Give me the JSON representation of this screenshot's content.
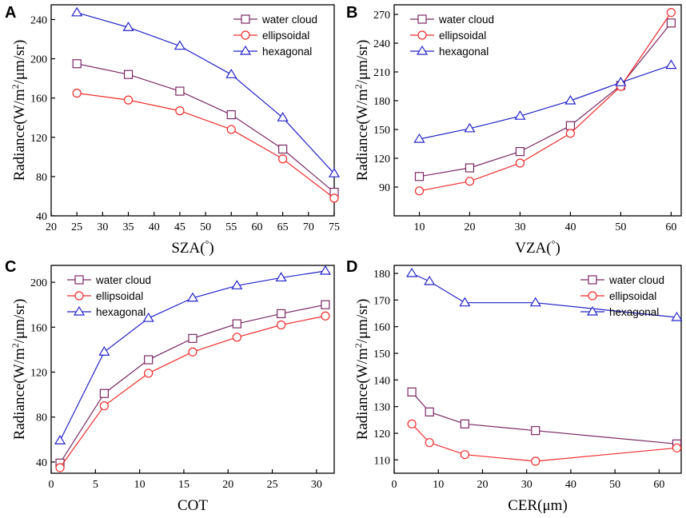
{
  "colors": {
    "water": "#7a2a63",
    "ellipsoidal": "#ef2b2b",
    "hexagonal": "#2323c8"
  },
  "chart_data": [
    {
      "panel": "A",
      "type": "line",
      "xlabel": "SZA(°)",
      "ylabel": "Radiance(W/m²/μm/sr)",
      "xlim": [
        20,
        75
      ],
      "ylim": [
        40,
        255
      ],
      "xticks": [
        20,
        25,
        30,
        35,
        40,
        45,
        50,
        55,
        60,
        65,
        70,
        75
      ],
      "yticks": [
        40,
        80,
        120,
        160,
        200,
        240
      ],
      "legend_position": "top-right",
      "x": [
        25,
        35,
        45,
        55,
        65,
        75
      ],
      "series": [
        {
          "name": "water cloud",
          "key": "water",
          "marker": "square",
          "values": [
            195,
            184,
            167,
            143,
            108,
            64
          ]
        },
        {
          "name": "ellipsoidal",
          "key": "ellipsoidal",
          "marker": "circle",
          "values": [
            165,
            158,
            147,
            128,
            98,
            58
          ]
        },
        {
          "name": "hexagonal",
          "key": "hexagonal",
          "marker": "triangle",
          "values": [
            247,
            232,
            213,
            184,
            140,
            83
          ]
        }
      ]
    },
    {
      "panel": "B",
      "type": "line",
      "xlabel": "VZA(°)",
      "ylabel": "Radiance(W/m²/μm/sr)",
      "xlim": [
        5,
        62
      ],
      "ylim": [
        60,
        280
      ],
      "xticks": [
        10,
        20,
        30,
        40,
        50,
        60
      ],
      "yticks": [
        90,
        120,
        150,
        180,
        210,
        240,
        270
      ],
      "legend_position": "top-left",
      "x": [
        10,
        20,
        30,
        40,
        50,
        60
      ],
      "series": [
        {
          "name": "water cloud",
          "key": "water",
          "marker": "square",
          "values": [
            101,
            110,
            127,
            154,
            196,
            261
          ]
        },
        {
          "name": "ellipsoidal",
          "key": "ellipsoidal",
          "marker": "circle",
          "values": [
            86,
            96,
            115,
            146,
            195,
            272
          ]
        },
        {
          "name": "hexagonal",
          "key": "hexagonal",
          "marker": "triangle",
          "values": [
            140,
            151,
            164,
            180,
            199,
            217
          ]
        }
      ]
    },
    {
      "panel": "C",
      "type": "line",
      "xlabel": "COT",
      "ylabel": "Radiance(W/m²/μm/sr)",
      "xlim": [
        0,
        32
      ],
      "ylim": [
        30,
        215
      ],
      "xticks": [
        0,
        5,
        10,
        15,
        20,
        25,
        30
      ],
      "yticks": [
        40,
        80,
        120,
        160,
        200
      ],
      "legend_position": "top-left",
      "x": [
        1,
        6,
        11,
        16,
        21,
        26,
        31
      ],
      "series": [
        {
          "name": "water cloud",
          "key": "water",
          "marker": "square",
          "values": [
            39,
            101,
            131,
            150,
            163,
            172,
            180
          ]
        },
        {
          "name": "ellipsoidal",
          "key": "ellipsoidal",
          "marker": "circle",
          "values": [
            35,
            90,
            119,
            138,
            151,
            162,
            170
          ]
        },
        {
          "name": "hexagonal",
          "key": "hexagonal",
          "marker": "triangle",
          "values": [
            59,
            138,
            168,
            186,
            197,
            204,
            210
          ]
        }
      ]
    },
    {
      "panel": "D",
      "type": "line",
      "xlabel": "CER(μm)",
      "ylabel": "Radiance(W/m²/μm/sr)",
      "xlim": [
        0,
        65
      ],
      "ylim": [
        105,
        183
      ],
      "xticks": [
        0,
        10,
        20,
        30,
        40,
        50,
        60
      ],
      "yticks": [
        110,
        120,
        130,
        140,
        150,
        160,
        170,
        180
      ],
      "legend_position": "top-right",
      "x": [
        4,
        8,
        16,
        32,
        64
      ],
      "series": [
        {
          "name": "water cloud",
          "key": "water",
          "marker": "square",
          "values": [
            135.5,
            128,
            123.5,
            121,
            116
          ]
        },
        {
          "name": "ellipsoidal",
          "key": "ellipsoidal",
          "marker": "circle",
          "values": [
            123.5,
            116.5,
            112,
            109.5,
            114.5
          ]
        },
        {
          "name": "hexagonal",
          "key": "hexagonal",
          "marker": "triangle",
          "values": [
            180,
            177,
            169,
            169,
            163.5
          ]
        }
      ]
    }
  ]
}
